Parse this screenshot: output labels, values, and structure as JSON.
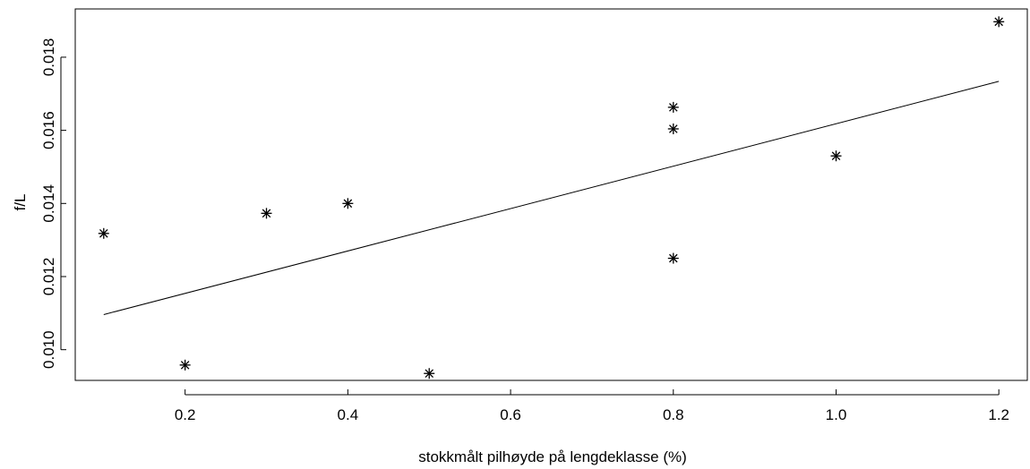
{
  "chart_data": {
    "type": "scatter",
    "title": "",
    "xlabel": "stokkmålt pilhøyde på lengdeklasse (%)",
    "ylabel": "f/L",
    "xlim": [
      0.065,
      1.235
    ],
    "ylim": [
      0.00916,
      0.01932
    ],
    "x_ticks": [
      0.2,
      0.4,
      0.6,
      0.8,
      1.0,
      1.2
    ],
    "x_tick_labels": [
      "0.2",
      "0.4",
      "0.6",
      "0.8",
      "1.0",
      "1.2"
    ],
    "y_ticks": [
      0.01,
      0.012,
      0.014,
      0.016,
      0.018
    ],
    "y_tick_labels": [
      "0.010",
      "0.012",
      "0.014",
      "0.016",
      "0.018"
    ],
    "marker": "asterisk",
    "grid": false,
    "points": [
      {
        "x": 0.1,
        "y": 0.01318
      },
      {
        "x": 0.2,
        "y": 0.00958
      },
      {
        "x": 0.3,
        "y": 0.01373
      },
      {
        "x": 0.4,
        "y": 0.014
      },
      {
        "x": 0.5,
        "y": 0.00935
      },
      {
        "x": 0.8,
        "y": 0.01663
      },
      {
        "x": 0.8,
        "y": 0.01604
      },
      {
        "x": 0.8,
        "y": 0.0125
      },
      {
        "x": 1.0,
        "y": 0.0153
      },
      {
        "x": 1.2,
        "y": 0.01897
      }
    ],
    "fit_line": {
      "x": [
        0.1,
        1.2
      ],
      "y": [
        0.01096,
        0.01734
      ]
    }
  }
}
